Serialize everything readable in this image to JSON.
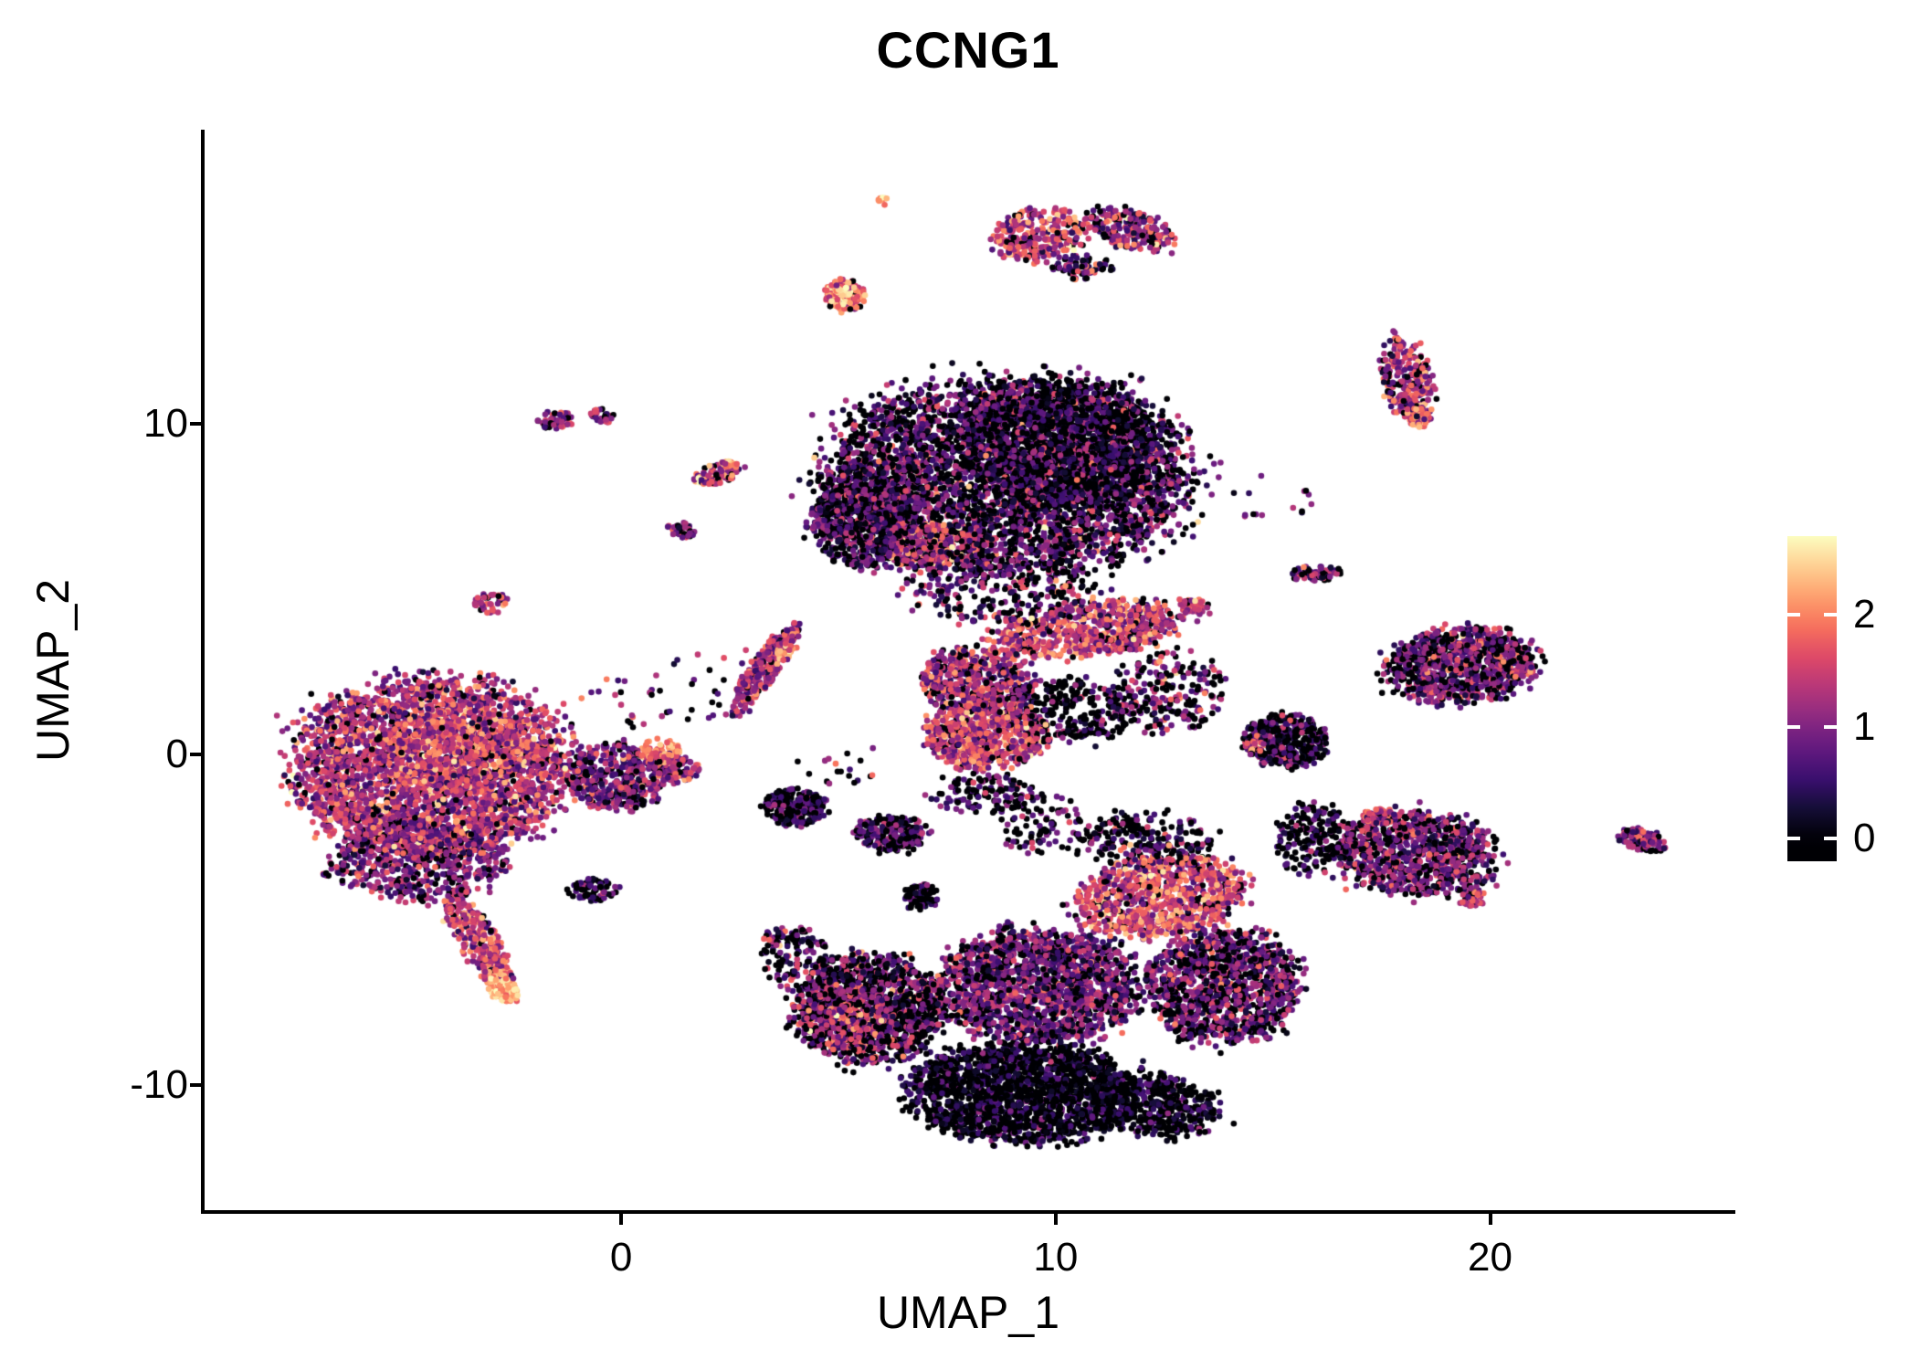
{
  "style": {
    "background": "#ffffff",
    "axis_color": "#000000",
    "text_color": "#000000",
    "point_radius": 3.3
  },
  "chart_data": {
    "type": "scatter",
    "title": "CCNG1",
    "xlabel": "UMAP_1",
    "ylabel": "UMAP_2",
    "xlim": [
      -9.59,
      25.56
    ],
    "ylim": [
      -13.78,
      18.9
    ],
    "x_ticks": [
      0,
      10,
      20
    ],
    "y_ticks": [
      -10,
      0,
      10
    ],
    "grid": false,
    "legend_position": "right",
    "colorbar": {
      "ticks": [
        0,
        1,
        2
      ],
      "value_range": [
        -0.2,
        2.7
      ]
    },
    "color_scale": {
      "name": "magma",
      "domain": [
        0,
        2.7
      ],
      "stops": [
        [
          0.0,
          "#000004"
        ],
        [
          0.1,
          "#140e36"
        ],
        [
          0.2,
          "#3b0f70"
        ],
        [
          0.3,
          "#641a80"
        ],
        [
          0.4,
          "#8c2981"
        ],
        [
          0.5,
          "#b73779"
        ],
        [
          0.6,
          "#de4968"
        ],
        [
          0.7,
          "#f7705c"
        ],
        [
          0.8,
          "#fe9f6d"
        ],
        [
          0.9,
          "#fecf92"
        ],
        [
          1.0,
          "#fcfdbf"
        ]
      ]
    },
    "seed": 11,
    "clusters": [
      {
        "name": "left-main",
        "cx": -4.35,
        "cy": -0.35,
        "rx": 3.15,
        "ry": 2.6,
        "n": 3200,
        "mean": 1.3,
        "sd": 0.5,
        "zero": 0.06
      },
      {
        "name": "left-main-hot",
        "cx": -3.9,
        "cy": 0.15,
        "rx": 1.6,
        "ry": 1.2,
        "n": 520,
        "mean": 1.75,
        "sd": 0.35,
        "zero": 0.02
      },
      {
        "name": "left-lower",
        "cx": -4.6,
        "cy": -3.1,
        "rx": 1.9,
        "ry": 1.3,
        "n": 720,
        "mean": 0.95,
        "sd": 0.45,
        "zero": 0.15
      },
      {
        "name": "left-tail",
        "cx": -3.3,
        "cy": -5.6,
        "rx": 0.45,
        "ry": 1.55,
        "rot": 0.42,
        "n": 320,
        "mean": 1.5,
        "sd": 0.5,
        "zero": 0.05
      },
      {
        "name": "left-tail-tip",
        "cx": -2.75,
        "cy": -7.0,
        "rx": 0.3,
        "ry": 0.55,
        "rot": 0.42,
        "n": 140,
        "mean": 2.2,
        "sd": 0.3,
        "zero": 0.0
      },
      {
        "name": "left-dots",
        "cx": -6.7,
        "cy": -3.5,
        "rx": 0.28,
        "ry": 0.2,
        "n": 9,
        "mean": 1.2,
        "sd": 0.4,
        "zero": 0.1
      },
      {
        "name": "small-dark-left",
        "cx": -0.7,
        "cy": -4.1,
        "rx": 0.55,
        "ry": 0.35,
        "n": 70,
        "mean": 0.55,
        "sd": 0.4,
        "zero": 0.3
      },
      {
        "name": "neck",
        "cx": -0.1,
        "cy": -0.7,
        "rx": 1.1,
        "ry": 1.0,
        "n": 420,
        "mean": 0.95,
        "sd": 0.5,
        "zero": 0.15
      },
      {
        "name": "neck-right",
        "cx": 1.2,
        "cy": -0.4,
        "rx": 0.55,
        "ry": 0.45,
        "n": 130,
        "mean": 1.15,
        "sd": 0.45,
        "zero": 0.1
      },
      {
        "name": "neck-hot",
        "cx": 0.9,
        "cy": 0.1,
        "rx": 0.45,
        "ry": 0.35,
        "n": 90,
        "mean": 2.0,
        "sd": 0.3,
        "zero": 0.0
      },
      {
        "name": "isle-left-mid",
        "cx": -3.0,
        "cy": 4.6,
        "rx": 0.35,
        "ry": 0.3,
        "n": 45,
        "mean": 1.3,
        "sd": 0.4,
        "zero": 0.1
      },
      {
        "name": "isle-topleft-a",
        "cx": -1.5,
        "cy": 10.1,
        "rx": 0.42,
        "ry": 0.26,
        "n": 52,
        "mean": 1.1,
        "sd": 0.4,
        "zero": 0.15
      },
      {
        "name": "isle-topleft-b",
        "cx": -0.45,
        "cy": 10.25,
        "rx": 0.26,
        "ry": 0.2,
        "n": 26,
        "mean": 1.0,
        "sd": 0.4,
        "zero": 0.2
      },
      {
        "name": "isle-mid-8",
        "cx": 2.2,
        "cy": 8.5,
        "rx": 0.6,
        "ry": 0.3,
        "rot": 0.35,
        "n": 85,
        "mean": 1.4,
        "sd": 0.5,
        "zero": 0.1
      },
      {
        "name": "isle-mid-8-hot",
        "cx": 2.5,
        "cy": 8.8,
        "rx": 0.13,
        "ry": 0.1,
        "n": 14,
        "mean": 2.3,
        "sd": 0.2,
        "zero": 0.0
      },
      {
        "name": "isle-mid-7",
        "cx": 1.4,
        "cy": 6.8,
        "rx": 0.32,
        "ry": 0.26,
        "n": 42,
        "mean": 0.8,
        "sd": 0.4,
        "zero": 0.3
      },
      {
        "name": "streak-diag",
        "cx": 3.3,
        "cy": 2.6,
        "rx": 0.32,
        "ry": 1.45,
        "rot": -0.5,
        "n": 330,
        "mean": 1.25,
        "sd": 0.45,
        "zero": 0.08
      },
      {
        "name": "streak-diag-hot",
        "cx": 3.75,
        "cy": 3.1,
        "rx": 0.16,
        "ry": 0.26,
        "rot": -0.5,
        "n": 55,
        "mean": 2.1,
        "sd": 0.3,
        "zero": 0.0
      },
      {
        "name": "isle-top-orange",
        "cx": 5.15,
        "cy": 13.9,
        "rx": 0.42,
        "ry": 0.46,
        "n": 170,
        "mean": 1.9,
        "sd": 0.5,
        "zero": 0.04
      },
      {
        "name": "isle-top-orange-hot",
        "cx": 5.1,
        "cy": 14.0,
        "rx": 0.18,
        "ry": 0.2,
        "n": 45,
        "mean": 2.5,
        "sd": 0.15,
        "zero": 0.0
      },
      {
        "name": "isle-top-dot",
        "cx": 6.0,
        "cy": 16.7,
        "rx": 0.13,
        "ry": 0.16,
        "n": 9,
        "mean": 2.2,
        "sd": 0.3,
        "zero": 0.0
      },
      {
        "name": "top-band-left",
        "cx": 9.6,
        "cy": 15.7,
        "rx": 1.05,
        "ry": 0.75,
        "rot": 0.3,
        "n": 270,
        "mean": 1.4,
        "sd": 0.55,
        "zero": 0.12
      },
      {
        "name": "top-band-right",
        "cx": 11.7,
        "cy": 15.9,
        "rx": 1.0,
        "ry": 0.55,
        "rot": -0.4,
        "n": 230,
        "mean": 1.2,
        "sd": 0.55,
        "zero": 0.15
      },
      {
        "name": "top-band-tail",
        "cx": 10.6,
        "cy": 14.75,
        "rx": 0.7,
        "ry": 0.35,
        "n": 75,
        "mean": 0.9,
        "sd": 0.5,
        "zero": 0.25
      },
      {
        "name": "main-top",
        "cx": 8.9,
        "cy": 8.4,
        "rx": 4.1,
        "ry": 2.9,
        "n": 4200,
        "mean": 0.75,
        "sd": 0.55,
        "zero": 0.3
      },
      {
        "name": "main-top-dark",
        "cx": 10.3,
        "cy": 9.3,
        "rx": 2.2,
        "ry": 1.9,
        "n": 1500,
        "mean": 0.35,
        "sd": 0.35,
        "zero": 0.5
      },
      {
        "name": "main-top-left",
        "cx": 5.7,
        "cy": 7.2,
        "rx": 1.3,
        "ry": 1.5,
        "n": 850,
        "mean": 0.7,
        "sd": 0.5,
        "zero": 0.3
      },
      {
        "name": "main-top-hot",
        "cx": 7.2,
        "cy": 6.3,
        "rx": 1.1,
        "ry": 0.7,
        "n": 300,
        "mean": 1.5,
        "sd": 0.5,
        "zero": 0.05
      },
      {
        "name": "main-top-fringe",
        "cx": 8.8,
        "cy": 4.9,
        "rx": 2.2,
        "ry": 0.9,
        "n": 260,
        "mean": 0.8,
        "sd": 0.6,
        "zero": 0.3
      },
      {
        "name": "mid-band",
        "cx": 10.8,
        "cy": 3.8,
        "rx": 2.2,
        "ry": 0.78,
        "rot": 0.15,
        "n": 680,
        "mean": 1.45,
        "sd": 0.5,
        "zero": 0.1
      },
      {
        "name": "mid-left",
        "cx": 8.2,
        "cy": 2.2,
        "rx": 1.3,
        "ry": 1.0,
        "n": 560,
        "mean": 1.25,
        "sd": 0.5,
        "zero": 0.12
      },
      {
        "name": "mid-bright",
        "cx": 8.4,
        "cy": 0.6,
        "rx": 1.35,
        "ry": 1.0,
        "n": 720,
        "mean": 1.5,
        "sd": 0.5,
        "zero": 0.08
      },
      {
        "name": "mid-dark-specks",
        "cx": 10.3,
        "cy": 1.3,
        "rx": 1.6,
        "ry": 1.0,
        "n": 300,
        "mean": 0.5,
        "sd": 0.5,
        "zero": 0.45
      },
      {
        "name": "mid-right-scatter",
        "cx": 12.6,
        "cy": 1.9,
        "rx": 1.3,
        "ry": 1.2,
        "n": 220,
        "mean": 0.9,
        "sd": 0.6,
        "zero": 0.3
      },
      {
        "name": "dark-a",
        "cx": 4.0,
        "cy": -1.6,
        "rx": 0.72,
        "ry": 0.55,
        "n": 260,
        "mean": 0.45,
        "sd": 0.4,
        "zero": 0.4
      },
      {
        "name": "dark-b",
        "cx": 6.2,
        "cy": -2.4,
        "rx": 0.8,
        "ry": 0.52,
        "n": 240,
        "mean": 0.7,
        "sd": 0.5,
        "zero": 0.3
      },
      {
        "name": "dark-c",
        "cx": 6.9,
        "cy": -4.3,
        "rx": 0.4,
        "ry": 0.4,
        "n": 90,
        "mean": 0.5,
        "sd": 0.45,
        "zero": 0.4
      },
      {
        "name": "sparse-below-mid",
        "cx": 8.3,
        "cy": -1.2,
        "rx": 1.2,
        "ry": 0.6,
        "n": 120,
        "mean": 0.6,
        "sd": 0.5,
        "zero": 0.4
      },
      {
        "name": "sparse-trail",
        "cx": 9.7,
        "cy": -2.1,
        "rx": 0.9,
        "ry": 0.9,
        "n": 90,
        "mean": 0.6,
        "sd": 0.5,
        "zero": 0.4
      },
      {
        "name": "bot-left",
        "cx": 5.7,
        "cy": -7.7,
        "rx": 1.7,
        "ry": 1.6,
        "n": 1300,
        "mean": 0.85,
        "sd": 0.6,
        "zero": 0.35
      },
      {
        "name": "bot-left-hot",
        "cx": 5.2,
        "cy": -7.9,
        "rx": 0.95,
        "ry": 0.95,
        "n": 260,
        "mean": 1.5,
        "sd": 0.5,
        "zero": 0.05
      },
      {
        "name": "bot-left-sparse",
        "cx": 4.0,
        "cy": -6.1,
        "rx": 0.8,
        "ry": 1.0,
        "n": 140,
        "mean": 0.7,
        "sd": 0.6,
        "zero": 0.35
      },
      {
        "name": "bot-bottom",
        "cx": 9.2,
        "cy": -10.2,
        "rx": 2.5,
        "ry": 1.5,
        "n": 1900,
        "mean": 0.3,
        "sd": 0.35,
        "zero": 0.5
      },
      {
        "name": "bot-mid",
        "cx": 9.6,
        "cy": -7.0,
        "rx": 2.3,
        "ry": 1.7,
        "n": 1700,
        "mean": 0.9,
        "sd": 0.45,
        "zero": 0.2
      },
      {
        "name": "bot-hot",
        "cx": 12.4,
        "cy": -4.3,
        "rx": 1.9,
        "ry": 1.2,
        "rot": 0.2,
        "n": 950,
        "mean": 1.55,
        "sd": 0.5,
        "zero": 0.08
      },
      {
        "name": "bot-right",
        "cx": 13.9,
        "cy": -7.0,
        "rx": 1.7,
        "ry": 1.7,
        "n": 1250,
        "mean": 0.85,
        "sd": 0.5,
        "zero": 0.25
      },
      {
        "name": "bot-right-dark",
        "cx": 12.3,
        "cy": -10.6,
        "rx": 1.45,
        "ry": 0.9,
        "rot": -0.3,
        "n": 480,
        "mean": 0.3,
        "sd": 0.35,
        "zero": 0.5
      },
      {
        "name": "bot-top-scatter",
        "cx": 12.0,
        "cy": -2.6,
        "rx": 1.6,
        "ry": 0.8,
        "n": 240,
        "mean": 0.6,
        "sd": 0.6,
        "zero": 0.4
      },
      {
        "name": "right-small",
        "cx": 15.3,
        "cy": 0.4,
        "rx": 0.9,
        "ry": 0.78,
        "n": 430,
        "mean": 0.55,
        "sd": 0.45,
        "zero": 0.4
      },
      {
        "name": "right-small-hot",
        "cx": 14.6,
        "cy": 0.3,
        "rx": 0.22,
        "ry": 0.3,
        "n": 40,
        "mean": 1.7,
        "sd": 0.4,
        "zero": 0.0
      },
      {
        "name": "right-upper",
        "cx": 19.3,
        "cy": 2.7,
        "rx": 1.65,
        "ry": 1.1,
        "rot": 0.1,
        "n": 950,
        "mean": 0.9,
        "sd": 0.5,
        "zero": 0.25
      },
      {
        "name": "right-upper-hot",
        "cx": 20.7,
        "cy": 2.6,
        "rx": 0.3,
        "ry": 0.3,
        "n": 35,
        "mean": 1.6,
        "sd": 0.4,
        "zero": 0.0
      },
      {
        "name": "right-lower",
        "cx": 18.3,
        "cy": -3.0,
        "rx": 1.8,
        "ry": 1.25,
        "rot": -0.15,
        "n": 1000,
        "mean": 0.95,
        "sd": 0.5,
        "zero": 0.22
      },
      {
        "name": "right-lower-hot-top",
        "cx": 17.4,
        "cy": -1.9,
        "rx": 0.35,
        "ry": 0.25,
        "n": 50,
        "mean": 1.6,
        "sd": 0.35,
        "zero": 0.0
      },
      {
        "name": "right-lower-tip",
        "cx": 19.6,
        "cy": -4.35,
        "rx": 0.3,
        "ry": 0.25,
        "n": 40,
        "mean": 1.4,
        "sd": 0.4,
        "zero": 0.05
      },
      {
        "name": "right-bridge-sparse",
        "cx": 15.9,
        "cy": -2.6,
        "rx": 0.8,
        "ry": 1.2,
        "n": 190,
        "mean": 0.5,
        "sd": 0.5,
        "zero": 0.45
      },
      {
        "name": "right-tall",
        "cx": 18.1,
        "cy": 11.3,
        "rx": 0.55,
        "ry": 1.3,
        "rot": 0.15,
        "n": 260,
        "mean": 1.2,
        "sd": 0.55,
        "zero": 0.15
      },
      {
        "name": "right-tall-hot",
        "cx": 18.35,
        "cy": 10.2,
        "rx": 0.25,
        "ry": 0.3,
        "n": 50,
        "mean": 2.0,
        "sd": 0.3,
        "zero": 0.0
      },
      {
        "name": "right-tiny-streak",
        "cx": 16.0,
        "cy": 5.5,
        "rx": 0.6,
        "ry": 0.25,
        "rot": 0.1,
        "n": 70,
        "mean": 0.8,
        "sd": 0.5,
        "zero": 0.3
      },
      {
        "name": "far-right-streak",
        "cx": 23.5,
        "cy": -2.6,
        "rx": 0.55,
        "ry": 0.3,
        "rot": -0.4,
        "n": 120,
        "mean": 0.95,
        "sd": 0.45,
        "zero": 0.15
      },
      {
        "name": "tiny-pink-mid",
        "cx": 13.2,
        "cy": 4.5,
        "rx": 0.35,
        "ry": 0.2,
        "n": 45,
        "mean": 1.5,
        "sd": 0.4,
        "zero": 0.1
      },
      {
        "name": "noise-a",
        "cx": 2.0,
        "cy": 2.0,
        "rx": 1.3,
        "ry": 1.2,
        "n": 26,
        "mean": 0.9,
        "sd": 0.5,
        "zero": 0.3
      },
      {
        "name": "noise-b",
        "cx": 0.1,
        "cy": 1.6,
        "rx": 1.0,
        "ry": 0.8,
        "n": 20,
        "mean": 1.0,
        "sd": 0.5,
        "zero": 0.3
      },
      {
        "name": "noise-c",
        "cx": 15.0,
        "cy": 7.8,
        "rx": 1.0,
        "ry": 0.8,
        "n": 14,
        "mean": 0.8,
        "sd": 0.5,
        "zero": 0.3
      },
      {
        "name": "noise-d",
        "cx": 5.0,
        "cy": -0.3,
        "rx": 0.9,
        "ry": 0.7,
        "n": 18,
        "mean": 0.8,
        "sd": 0.5,
        "zero": 0.3
      }
    ]
  }
}
